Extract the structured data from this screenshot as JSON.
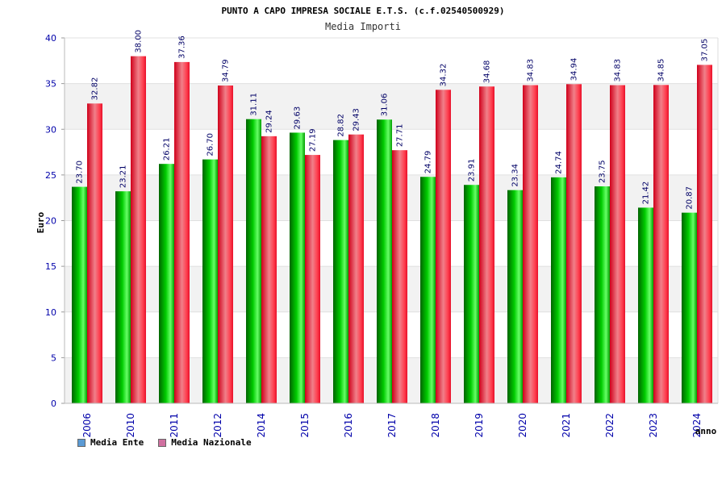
{
  "chart_data": {
    "type": "bar",
    "title": "PUNTO A CAPO IMPRESA SOCIALE E.T.S. (c.f.02540500929)",
    "subtitle": "Media Importi",
    "xlabel": "anno",
    "ylabel": "Euro",
    "ylim": [
      0,
      40
    ],
    "yticks": [
      0,
      5,
      10,
      15,
      20,
      25,
      30,
      35,
      40
    ],
    "grid": true,
    "legend_position": "bottom-left",
    "categories": [
      "2006",
      "2010",
      "2011",
      "2012",
      "2014",
      "2015",
      "2016",
      "2017",
      "2018",
      "2019",
      "2020",
      "2021",
      "2022",
      "2023",
      "2024"
    ],
    "series": [
      {
        "name": "Media Ente",
        "color": "#00aa00",
        "legend_color": "#5b9bd5",
        "values": [
          23.7,
          23.21,
          26.21,
          26.7,
          31.11,
          29.63,
          28.82,
          31.06,
          24.79,
          23.91,
          23.34,
          24.74,
          23.75,
          21.42,
          20.87
        ],
        "labels": [
          "23.70",
          "23.21",
          "26.21",
          "26.70",
          "31.11",
          "29.63",
          "28.82",
          "31.06",
          "24.79",
          "23.91",
          "23.34",
          "24.74",
          "23.75",
          "21.42",
          "20.87"
        ]
      },
      {
        "name": "Media Nazionale",
        "color": "#e8102a",
        "legend_color": "#d070a0",
        "values": [
          32.82,
          38.0,
          37.36,
          34.79,
          29.24,
          27.19,
          29.43,
          27.71,
          34.32,
          34.68,
          34.83,
          34.94,
          34.83,
          34.85,
          37.05
        ],
        "labels": [
          "32.82",
          "38.00",
          "37.36",
          "34.79",
          "29.24",
          "27.19",
          "29.43",
          "27.71",
          "34.32",
          "34.68",
          "34.83",
          "34.94",
          "34.83",
          "34.85",
          "37.05"
        ]
      }
    ]
  }
}
